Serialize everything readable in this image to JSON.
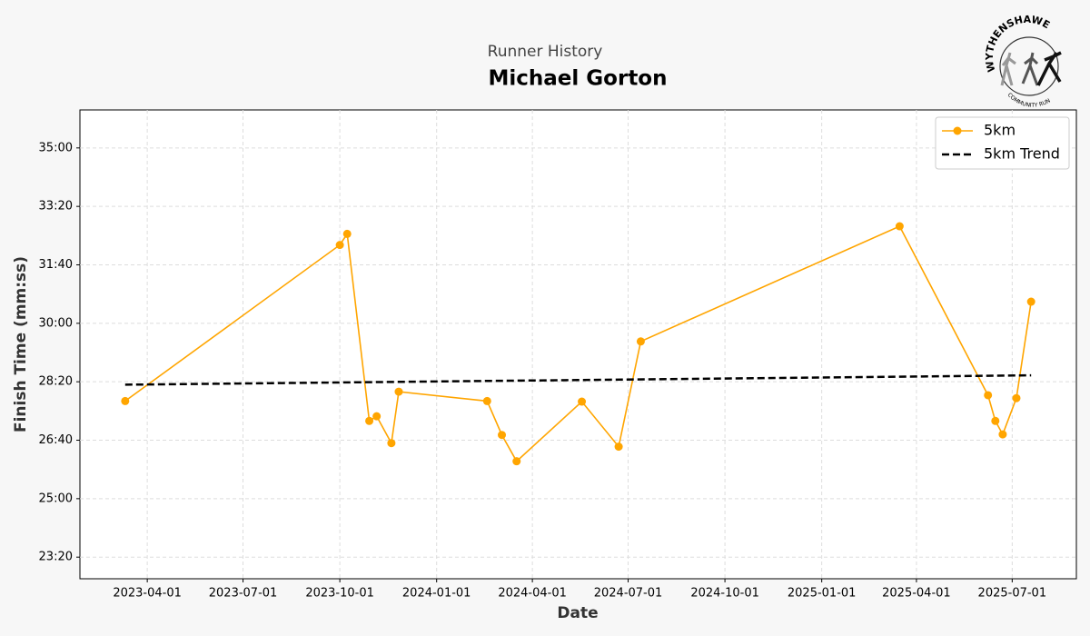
{
  "chart_data": {
    "type": "line",
    "subtitle": "Runner History",
    "title": "Michael Gorton",
    "xlabel": "Date",
    "ylabel": "Finish Time (mm:ss)",
    "logo": {
      "top": "WYTHENSHAWE",
      "bottom": "COMMUNITY RUN"
    },
    "x": [
      "2023-03-11",
      "2023-10-01",
      "2023-10-08",
      "2023-10-29",
      "2023-11-05",
      "2023-11-19",
      "2023-11-26",
      "2024-02-18",
      "2024-03-03",
      "2024-03-17",
      "2024-05-18",
      "2024-06-22",
      "2024-07-13",
      "2025-03-16",
      "2025-06-08",
      "2025-06-15",
      "2025-06-22",
      "2025-07-05",
      "2025-07-19"
    ],
    "series": [
      {
        "name": "5km",
        "color": "#ffa500",
        "marker": true,
        "dashed": false,
        "values": [
          1667,
          1934,
          1953,
          1633,
          1641,
          1595,
          1683,
          1667,
          1609,
          1564,
          1666,
          1589,
          1769,
          1966,
          1677,
          1633,
          1610,
          1672,
          1837
        ]
      },
      {
        "name": "5km Trend",
        "color": "#000000",
        "marker": false,
        "dashed": true,
        "x": [
          "2023-03-11",
          "2025-07-19"
        ],
        "values": [
          1695,
          1711
        ]
      }
    ],
    "xlim": [
      "2023-01-27",
      "2025-08-31"
    ],
    "xticks": [
      "2023-04-01",
      "2023-07-01",
      "2023-10-01",
      "2024-01-01",
      "2024-04-01",
      "2024-07-01",
      "2024-10-01",
      "2025-01-01",
      "2025-04-01",
      "2025-07-01"
    ],
    "ylim": [
      1363,
      2165
    ],
    "yticks": [
      {
        "value": 1400,
        "label": "23:20"
      },
      {
        "value": 1500,
        "label": "25:00"
      },
      {
        "value": 1600,
        "label": "26:40"
      },
      {
        "value": 1700,
        "label": "28:20"
      },
      {
        "value": 1800,
        "label": "30:00"
      },
      {
        "value": 1900,
        "label": "31:40"
      },
      {
        "value": 2000,
        "label": "33:20"
      },
      {
        "value": 2100,
        "label": "35:00"
      }
    ],
    "grid": true,
    "legend": "upper right"
  }
}
